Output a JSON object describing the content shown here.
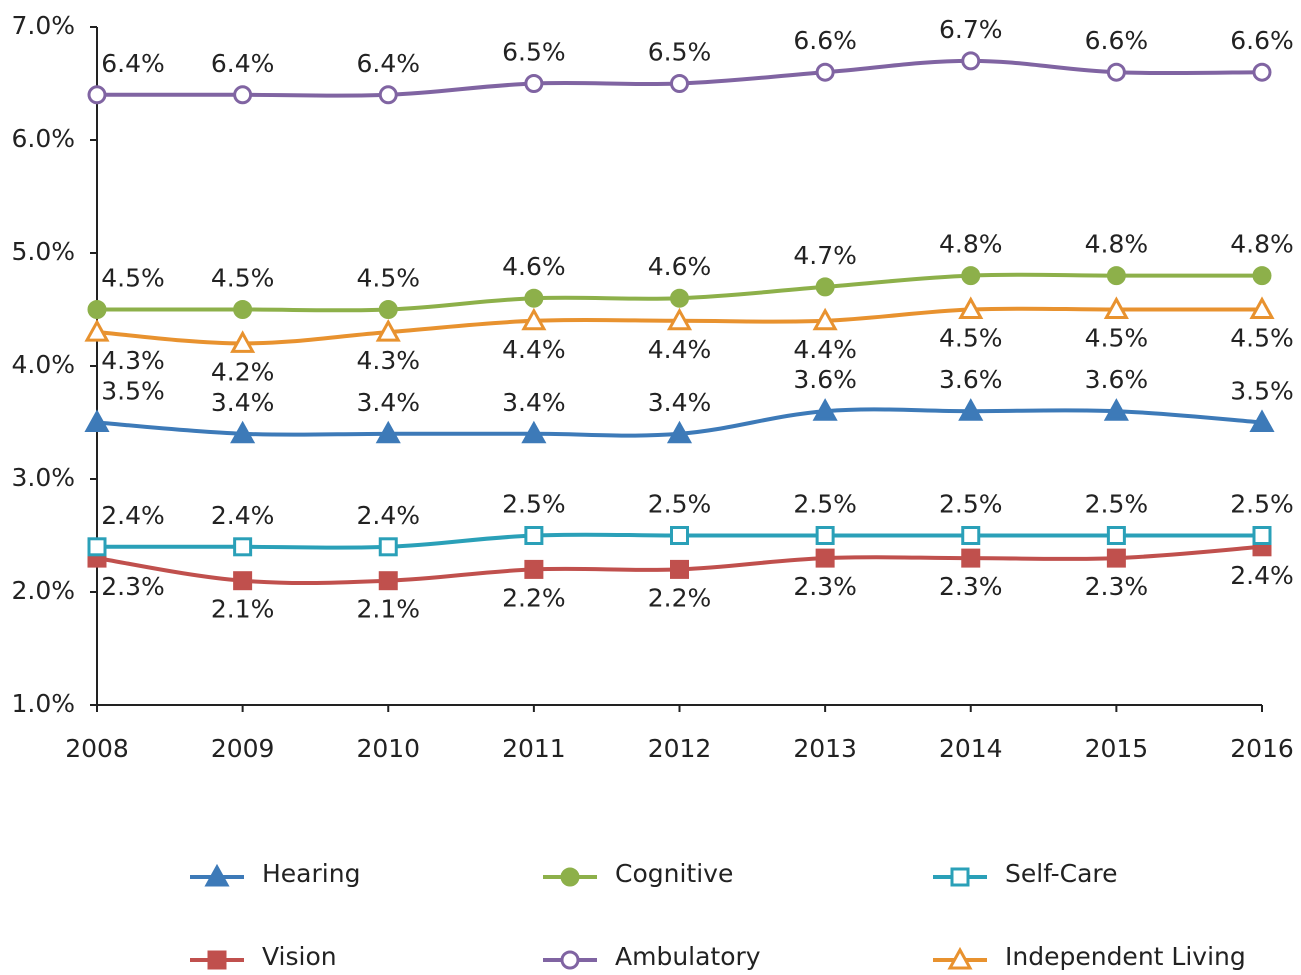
{
  "chart_data": {
    "type": "line",
    "x": [
      "2008",
      "2009",
      "2010",
      "2011",
      "2012",
      "2013",
      "2014",
      "2015",
      "2016"
    ],
    "ylim": [
      1,
      7
    ],
    "yticks": [
      {
        "value": 1,
        "label": "1.0%"
      },
      {
        "value": 2,
        "label": "2.0%"
      },
      {
        "value": 3,
        "label": "3.0%"
      },
      {
        "value": 4,
        "label": "4.0%"
      },
      {
        "value": 5,
        "label": "5.0%"
      },
      {
        "value": 6,
        "label": "6.0%"
      },
      {
        "value": 7,
        "label": "7.0%"
      }
    ],
    "grid": false,
    "legend": "bottom",
    "series": [
      {
        "name": "Hearing",
        "color": "#3d7ab8",
        "marker": "triangle",
        "marker_filled": true,
        "values": [
          3.5,
          3.4,
          3.4,
          3.4,
          3.4,
          3.6,
          3.6,
          3.6,
          3.5
        ],
        "value_labels": [
          "3.5%",
          "3.4%",
          "3.4%",
          "3.4%",
          "3.4%",
          "3.6%",
          "3.6%",
          "3.6%",
          "3.5%"
        ]
      },
      {
        "name": "Vision",
        "color": "#c0504d",
        "marker": "square",
        "marker_filled": true,
        "values": [
          2.3,
          2.1,
          2.1,
          2.2,
          2.2,
          2.3,
          2.3,
          2.3,
          2.4
        ],
        "value_labels": [
          "2.3%",
          "2.1%",
          "2.1%",
          "2.2%",
          "2.2%",
          "2.3%",
          "2.3%",
          "2.3%",
          "2.4%"
        ]
      },
      {
        "name": "Cognitive",
        "color": "#8db04a",
        "marker": "circle",
        "marker_filled": true,
        "values": [
          4.5,
          4.5,
          4.5,
          4.6,
          4.6,
          4.7,
          4.8,
          4.8,
          4.8
        ],
        "value_labels": [
          "4.5%",
          "4.5%",
          "4.5%",
          "4.6%",
          "4.6%",
          "4.7%",
          "4.8%",
          "4.8%",
          "4.8%"
        ]
      },
      {
        "name": "Ambulatory",
        "color": "#8064a2",
        "marker": "circle",
        "marker_filled": false,
        "values": [
          6.4,
          6.4,
          6.4,
          6.5,
          6.5,
          6.6,
          6.7,
          6.6,
          6.6
        ],
        "value_labels": [
          "6.4%",
          "6.4%",
          "6.4%",
          "6.5%",
          "6.5%",
          "6.6%",
          "6.7%",
          "6.6%",
          "6.6%"
        ]
      },
      {
        "name": "Self-Care",
        "color": "#2aa0b8",
        "marker": "square",
        "marker_filled": false,
        "values": [
          2.4,
          2.4,
          2.4,
          2.5,
          2.5,
          2.5,
          2.5,
          2.5,
          2.5
        ],
        "value_labels": [
          "2.4%",
          "2.4%",
          "2.4%",
          "2.5%",
          "2.5%",
          "2.5%",
          "2.5%",
          "2.5%",
          "2.5%"
        ]
      },
      {
        "name": "Independent Living",
        "color": "#e8922f",
        "marker": "triangle",
        "marker_filled": false,
        "values": [
          4.3,
          4.2,
          4.3,
          4.4,
          4.4,
          4.4,
          4.5,
          4.5,
          4.5
        ],
        "value_labels": [
          "4.3%",
          "4.2%",
          "4.3%",
          "4.4%",
          "4.4%",
          "4.4%",
          "4.5%",
          "4.5%",
          "4.5%"
        ]
      }
    ]
  }
}
